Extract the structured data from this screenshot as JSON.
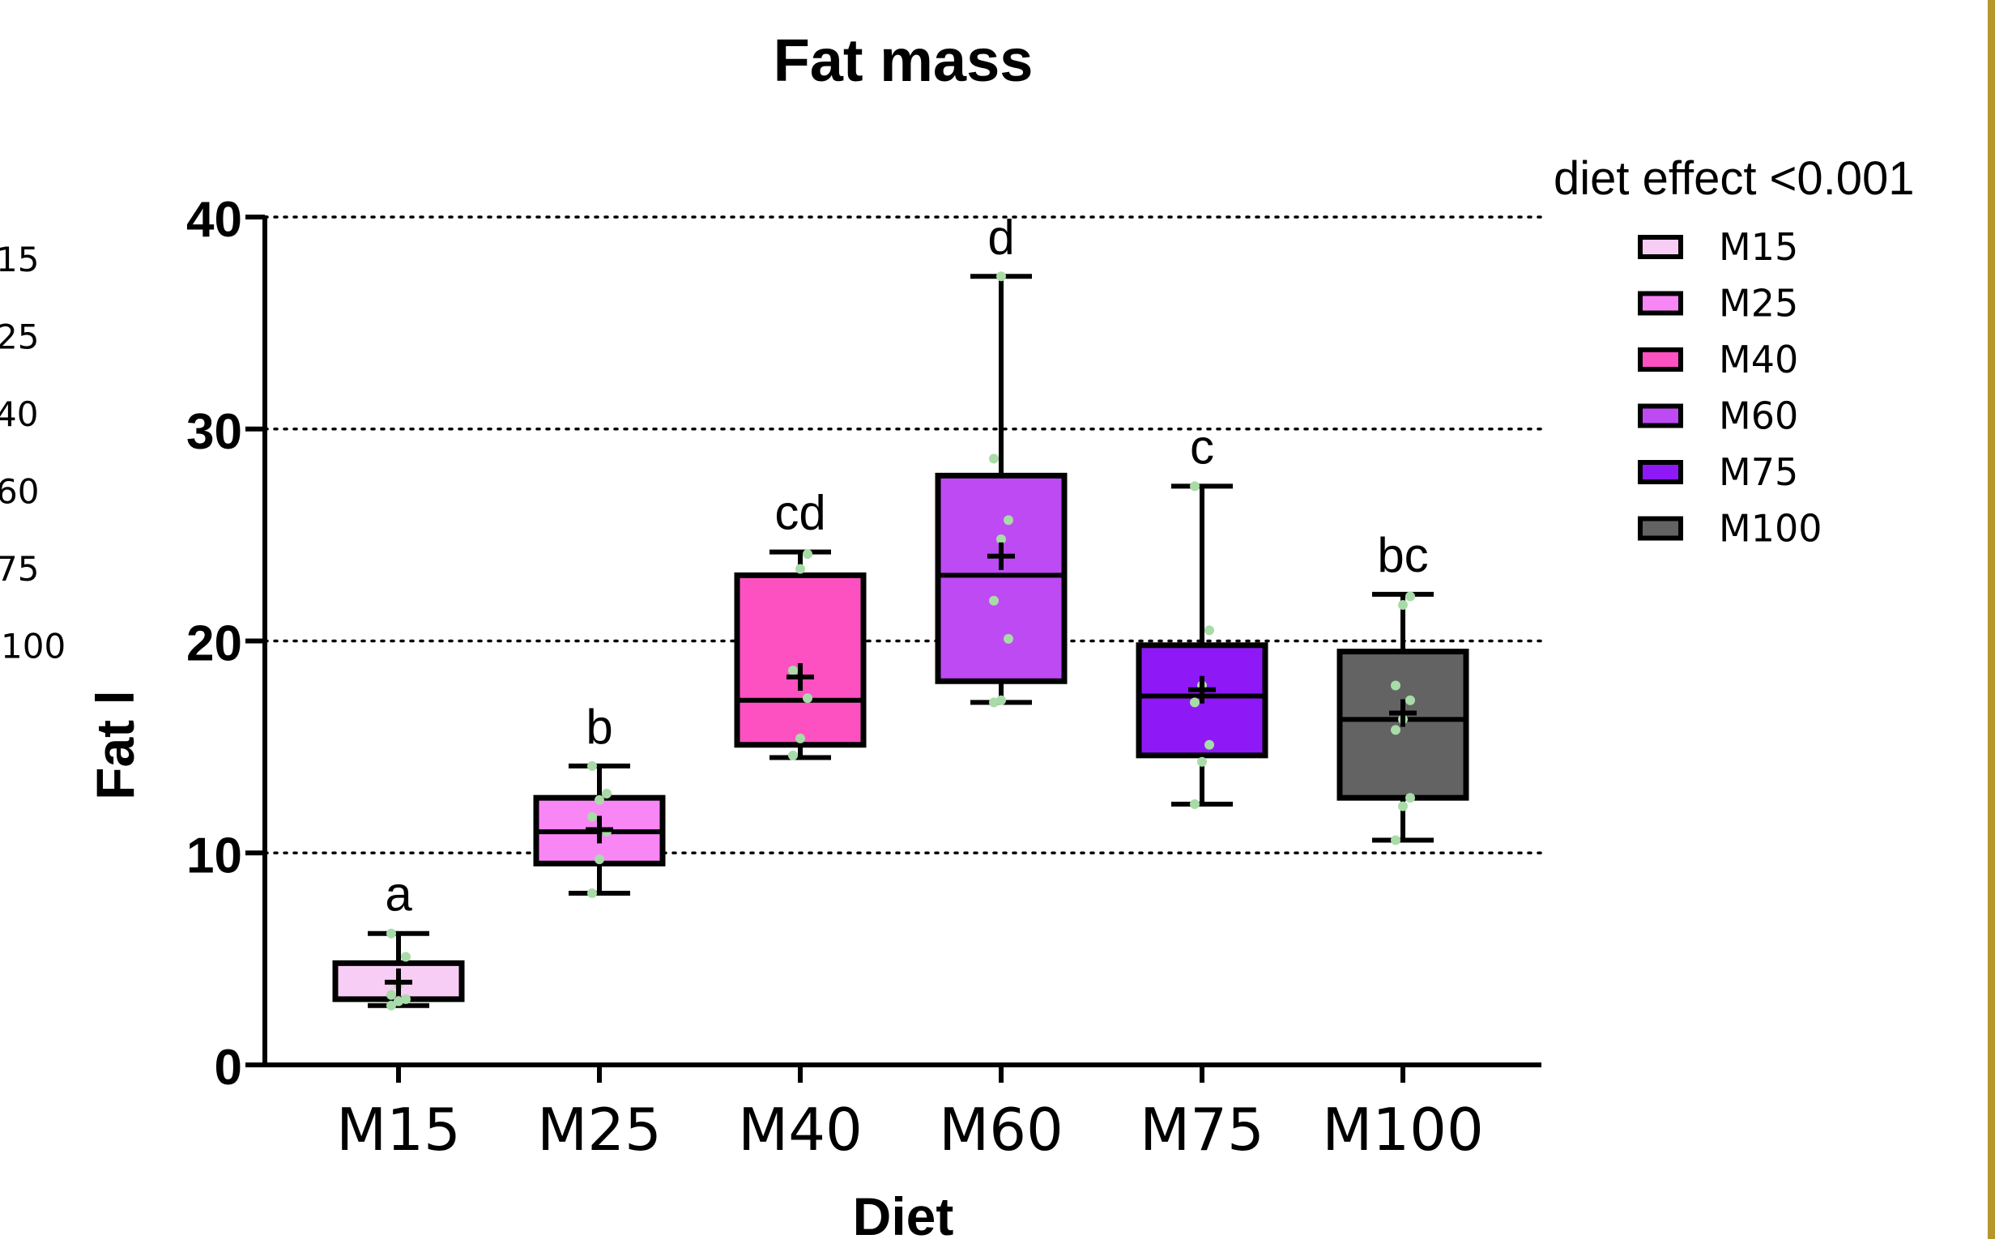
{
  "chart_data": {
    "type": "box",
    "title": "Fat mass",
    "xlabel": "Diet",
    "ylabel": "Fat l",
    "ylim": [
      0,
      40
    ],
    "yticks": [
      "0",
      "10",
      "20",
      "30",
      "40"
    ],
    "grid": "horizontal dotted at 10, 20, 30, 40",
    "legend_position": "top-right",
    "legend_title": "diet effect <0.001",
    "legend_labels": [
      "M15",
      "M25",
      " M40",
      "M60",
      "M75",
      "M100"
    ],
    "left_clipped_labels": [
      "15",
      "25",
      "40",
      "60",
      "75",
      "100"
    ],
    "point_color": "#a8dba8",
    "groups": [
      {
        "name": "M15",
        "color": "#f8cdf5",
        "sig": "a",
        "min": 2.8,
        "q1": 3.1,
        "median": 3.1,
        "q3": 4.8,
        "max": 6.2,
        "mean": 3.9,
        "points": [
          2.8,
          3.0,
          3.1,
          3.3,
          3.8,
          5.1,
          6.2
        ]
      },
      {
        "name": "M25",
        "color": "#f886f5",
        "sig": "b",
        "min": 8.1,
        "q1": 9.5,
        "median": 11.0,
        "q3": 12.6,
        "max": 14.1,
        "mean": 11.1,
        "points": [
          8.1,
          9.7,
          11.0,
          11.7,
          12.5,
          12.8,
          14.1
        ]
      },
      {
        "name": "M40",
        "color": "#fe51c1",
        "sig": "cd",
        "min": 14.5,
        "q1": 15.1,
        "median": 17.2,
        "q3": 23.1,
        "max": 24.2,
        "mean": 18.3,
        "points": [
          14.6,
          15.4,
          17.3,
          18.6,
          23.4,
          24.1
        ]
      },
      {
        "name": "M60",
        "color": "#bd4af3",
        "sig": "d",
        "min": 17.1,
        "q1": 18.1,
        "median": 23.1,
        "q3": 27.8,
        "max": 37.2,
        "mean": 24.0,
        "points": [
          17.1,
          17.2,
          20.1,
          21.9,
          24.8,
          25.7,
          28.6,
          37.2
        ]
      },
      {
        "name": "M75",
        "color": "#8e19f6",
        "sig": "c",
        "min": 12.3,
        "q1": 14.6,
        "median": 17.4,
        "q3": 19.8,
        "max": 27.3,
        "mean": 17.7,
        "points": [
          12.3,
          14.3,
          15.1,
          17.1,
          17.9,
          20.5,
          27.3
        ]
      },
      {
        "name": "M100",
        "color": "#636363",
        "sig": "bc",
        "min": 10.6,
        "q1": 12.6,
        "median": 16.3,
        "q3": 19.5,
        "max": 22.2,
        "mean": 16.6,
        "points": [
          10.6,
          12.2,
          12.6,
          15.8,
          16.3,
          17.2,
          17.9,
          21.7,
          22.1
        ]
      }
    ]
  }
}
